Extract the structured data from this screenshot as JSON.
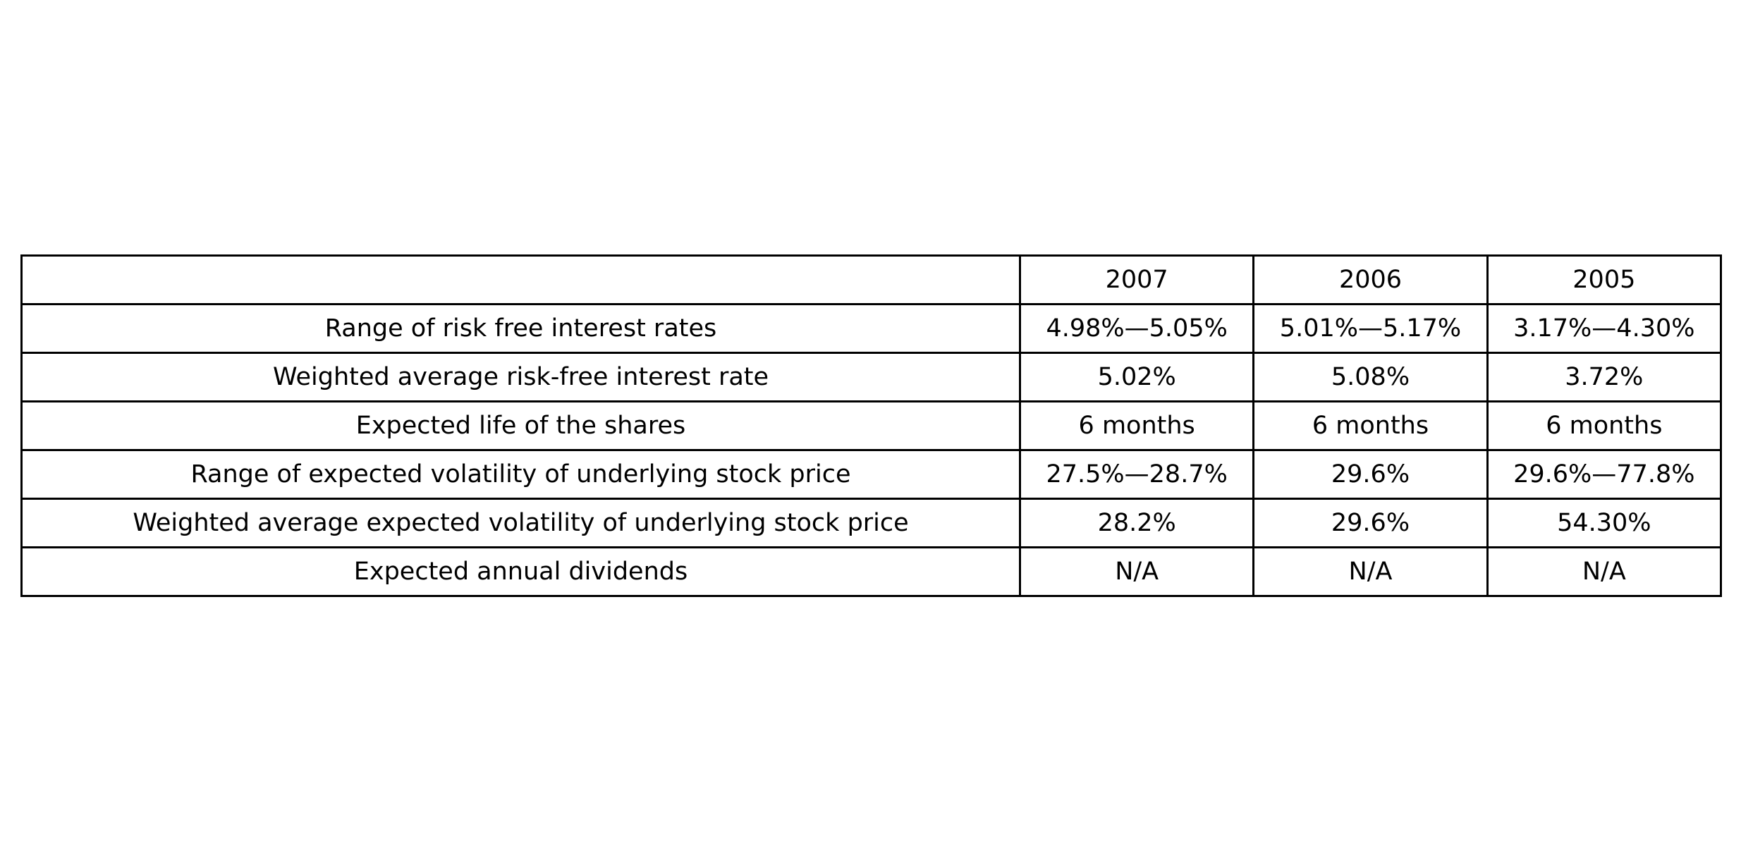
{
  "table": {
    "header": [
      "",
      "2007",
      "2006",
      "2005"
    ],
    "rows": [
      [
        "Range of risk free interest rates",
        "4.98%—5.05%",
        "5.01%—5.17%",
        "3.17%—4.30%"
      ],
      [
        "Weighted average risk-free interest rate",
        "5.02%",
        "5.08%",
        "3.72%"
      ],
      [
        "Expected life of the shares",
        "6 months",
        "6 months",
        "6 months"
      ],
      [
        "Range of expected volatility of underlying stock price",
        "27.5%—28.7%",
        "29.6%",
        "29.6%—77.8%"
      ],
      [
        "Weighted average expected volatility of underlying stock price",
        "28.2%",
        "29.6%",
        "54.30%"
      ],
      [
        "Expected annual dividends",
        "N/A",
        "N/A",
        "N/A"
      ]
    ]
  }
}
